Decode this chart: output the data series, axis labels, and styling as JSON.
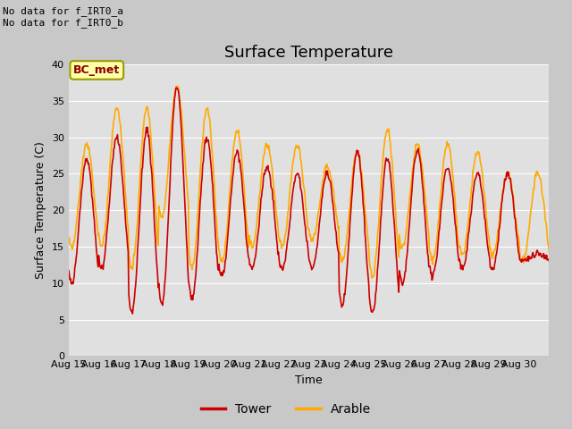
{
  "title": "Surface Temperature",
  "ylabel": "Surface Temperature (C)",
  "xlabel": "Time",
  "xlim_labels": [
    "Aug 15",
    "Aug 16",
    "Aug 17",
    "Aug 18",
    "Aug 19",
    "Aug 20",
    "Aug 21",
    "Aug 22",
    "Aug 23",
    "Aug 24",
    "Aug 25",
    "Aug 26",
    "Aug 27",
    "Aug 28",
    "Aug 29",
    "Aug 30"
  ],
  "ylim": [
    0,
    40
  ],
  "yticks": [
    0,
    5,
    10,
    15,
    20,
    25,
    30,
    35,
    40
  ],
  "fig_bg_color": "#c8c8c8",
  "plot_bg_color": "#e0e0e0",
  "tower_color": "#cc0000",
  "arable_color": "#ffaa00",
  "annotation_text": "No data for f_IRT0_a\nNo data for f_IRT0_b",
  "legend_box_label": "BC_met",
  "legend_box_facecolor": "#ffffaa",
  "legend_box_edgecolor": "#999900",
  "title_fontsize": 13,
  "label_fontsize": 9,
  "tick_fontsize": 8,
  "annot_fontsize": 8,
  "bc_fontsize": 9,
  "linewidth": 1.2,
  "tower_peaks": [
    27,
    30,
    31,
    37,
    30,
    28,
    26,
    25,
    25,
    28,
    27,
    28,
    26,
    25,
    25,
    14
  ],
  "tower_mins": [
    10,
    12,
    6,
    7,
    8,
    11,
    12,
    12,
    12,
    7,
    6,
    10,
    11,
    12,
    12,
    13
  ],
  "arable_peaks": [
    29,
    34,
    34,
    37,
    34,
    31,
    29,
    29,
    26,
    28,
    31,
    29,
    29,
    28,
    25,
    25
  ],
  "arable_mins": [
    15,
    15,
    12,
    19,
    12,
    13,
    15,
    15,
    16,
    13,
    11,
    15,
    13,
    14,
    14,
    13
  ]
}
